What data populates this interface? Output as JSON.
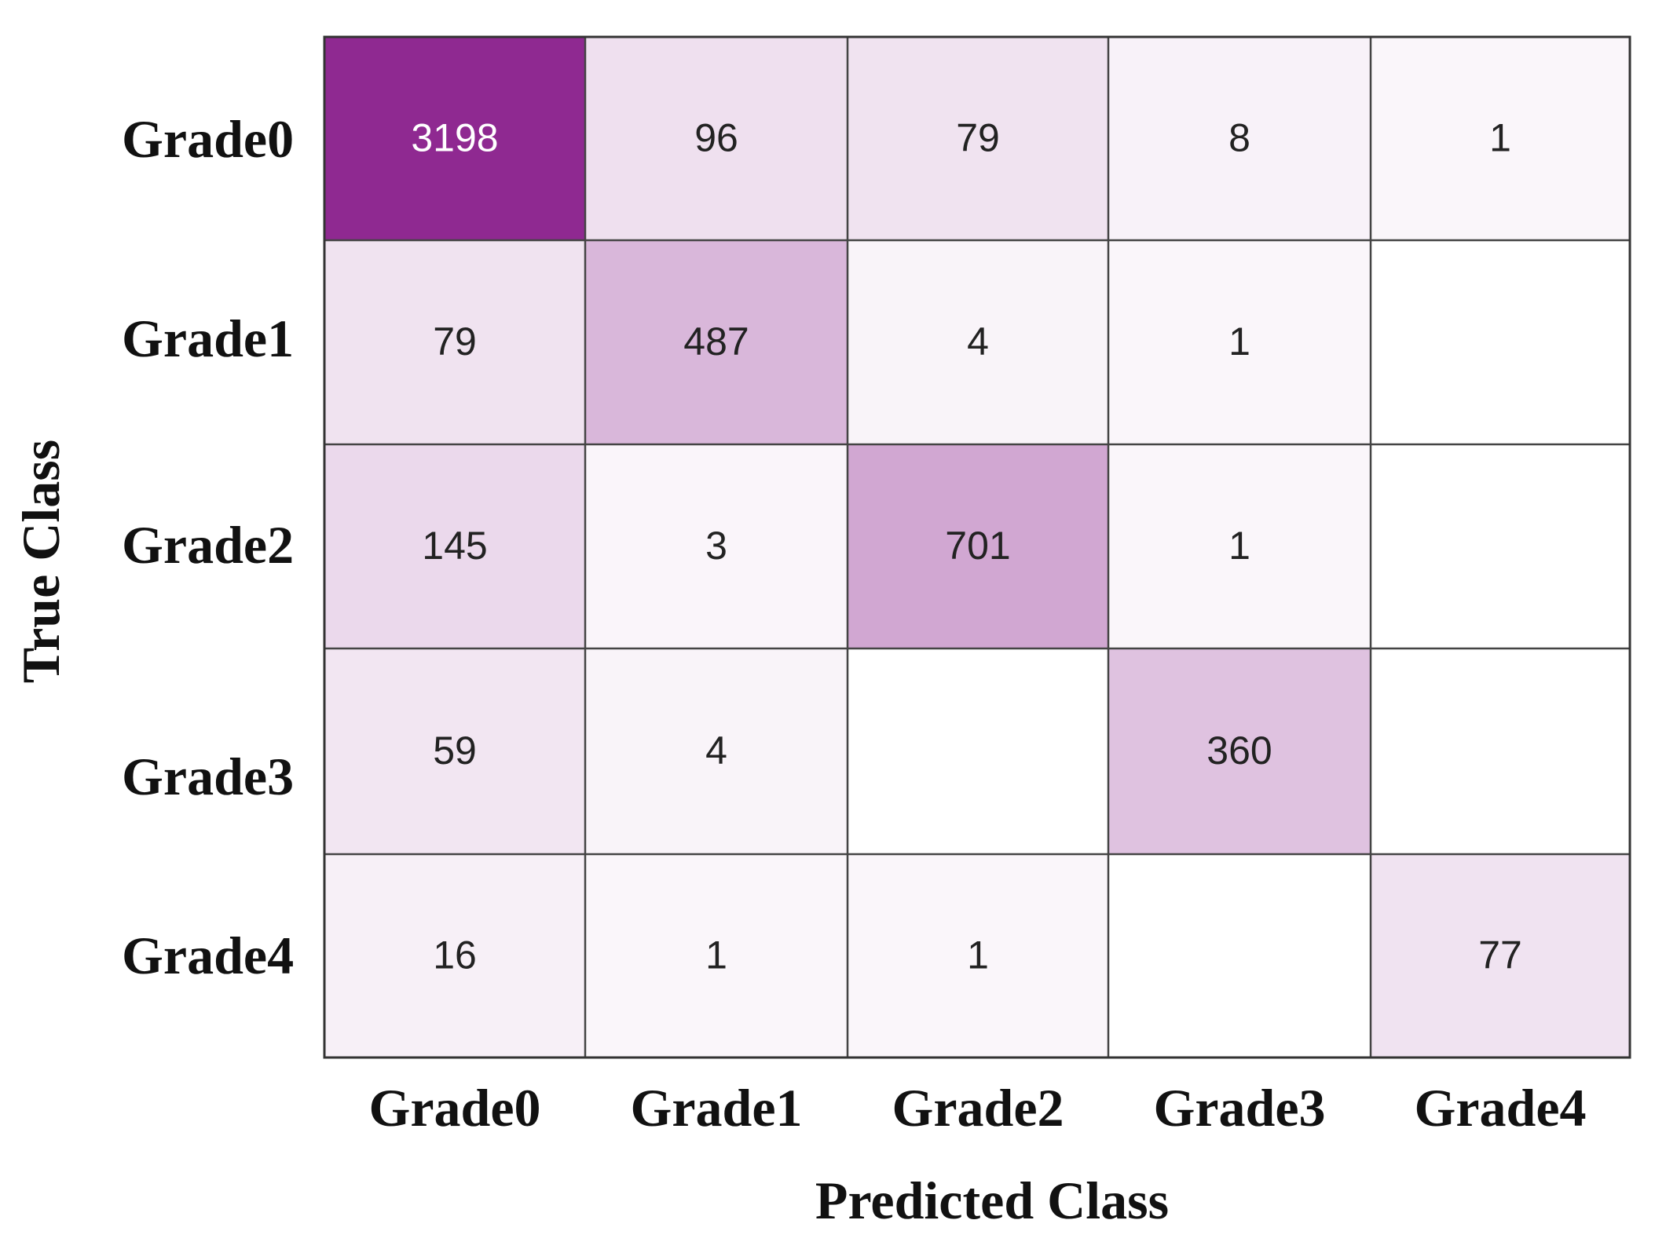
{
  "chart_data": {
    "type": "heatmap",
    "title": "",
    "xlabel": "Predicted Class",
    "ylabel": "True Class",
    "x_categories": [
      "Grade0",
      "Grade1",
      "Grade2",
      "Grade3",
      "Grade4"
    ],
    "y_categories": [
      "Grade0",
      "Grade1",
      "Grade2",
      "Grade3",
      "Grade4"
    ],
    "values": [
      [
        3198,
        96,
        79,
        8,
        1
      ],
      [
        79,
        487,
        4,
        1,
        null
      ],
      [
        145,
        3,
        701,
        1,
        null
      ],
      [
        59,
        4,
        null,
        360,
        null
      ],
      [
        16,
        1,
        1,
        null,
        77
      ]
    ],
    "colors": {
      "high": "#8f2991",
      "low": "#ffffff",
      "text_dark": "#222222",
      "text_light": "#ffffff"
    },
    "grid": true,
    "legend": "none"
  }
}
